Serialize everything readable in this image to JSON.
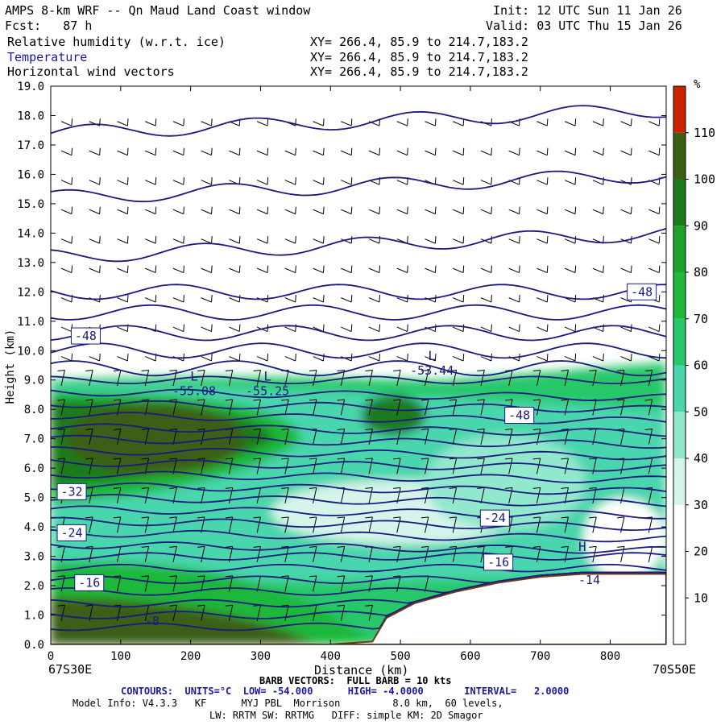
{
  "header": {
    "title": "AMPS 8-km WRF -- Qn Maud Land Coast window",
    "init": "Init: 12 UTC Sun 11 Jan 26",
    "fcst": "Fcst:   87 h",
    "valid": "Valid: 03 UTC Thu 15 Jan 26",
    "fields": [
      {
        "name": "Relative humidity (w.r.t. ice)",
        "xy": "XY= 266.4, 85.9 to 214.7,183.2"
      },
      {
        "name": "Temperature",
        "xy": "XY= 266.4, 85.9 to 214.7,183.2"
      },
      {
        "name": "Horizontal wind vectors",
        "xy": "XY= 266.4, 85.9 to 214.7,183.2"
      }
    ]
  },
  "footer": {
    "left_coord": "67S30E",
    "right_coord": "70S50E",
    "barb_line": "BARB VECTORS:  FULL BARB = 10 kts",
    "contours_line": "CONTOURS:  UNITS=°C  LOW= -54.000      HIGH= -4.0000       INTERVAL=   2.0000",
    "model_info": "Model Info: V4.3.3   KF      MYJ PBL  Morrison         8.0 km,  60 levels,",
    "model_info2": "LW: RRTM SW: RRTMG   DIFF: simple KM: 2D Smagor"
  },
  "colors": {
    "contour": "#1a1a80",
    "terrain": "#6e3a1e",
    "scale": [
      "#ffffff",
      "#ffffff",
      "#ffffff",
      "#d6f5ea",
      "#92e8cc",
      "#49d6ac",
      "#26c86a",
      "#1fb83a",
      "#20a22a",
      "#1e7a1e",
      "#3b5e14",
      "#cc2200"
    ]
  },
  "chart_data": {
    "type": "cross-section",
    "title": "Relative humidity (w.r.t. ice), Temperature, Horizontal wind vectors",
    "xlabel": "Distance (km)",
    "ylabel": "Height (km)",
    "xlim": [
      0,
      880
    ],
    "ylim": [
      0,
      19
    ],
    "xticks": [
      0,
      100,
      200,
      300,
      400,
      500,
      600,
      700,
      800
    ],
    "yticks": [
      "0.0",
      "1.0",
      "2.0",
      "3.0",
      "4.0",
      "5.0",
      "6.0",
      "7.0",
      "8.0",
      "9.0",
      "10.0",
      "11.0",
      "12.0",
      "13.0",
      "14.0",
      "15.0",
      "16.0",
      "17.0",
      "18.0",
      "19.0"
    ],
    "colorbar": {
      "unit": "%",
      "levels": [
        10,
        20,
        30,
        40,
        50,
        60,
        70,
        80,
        90,
        100,
        110
      ]
    },
    "contour_labels": [
      {
        "text": "-48",
        "x": 50,
        "y": 10.5,
        "boxed": true
      },
      {
        "text": "-48",
        "x": 845,
        "y": 12.0,
        "boxed": true
      },
      {
        "text": "-48",
        "x": 670,
        "y": 7.8,
        "boxed": true
      },
      {
        "text": "-32",
        "x": 30,
        "y": 5.2,
        "boxed": true
      },
      {
        "text": "-24",
        "x": 30,
        "y": 3.8,
        "boxed": true
      },
      {
        "text": "-24",
        "x": 635,
        "y": 4.3,
        "boxed": true
      },
      {
        "text": "-16",
        "x": 55,
        "y": 2.1,
        "boxed": true
      },
      {
        "text": "-16",
        "x": 640,
        "y": 2.8,
        "boxed": true
      },
      {
        "text": "-8",
        "x": 145,
        "y": 0.8,
        "boxed": false
      },
      {
        "text": "-14",
        "x": 770,
        "y": 2.2,
        "boxed": false
      }
    ],
    "extrema": [
      {
        "kind": "L",
        "value": "-55.08",
        "x": 205,
        "y": 8.6
      },
      {
        "kind": "L",
        "value": "-55.25",
        "x": 310,
        "y": 8.6
      },
      {
        "kind": "L",
        "value": "-53.44",
        "x": 545,
        "y": 9.3
      },
      {
        "kind": "H",
        "value": "",
        "x": 760,
        "y": 2.8
      }
    ],
    "terrain_height_km": {
      "x": [
        0,
        100,
        200,
        300,
        400,
        460,
        480,
        520,
        580,
        640,
        700,
        760,
        820,
        880
      ],
      "z": [
        0,
        0,
        0,
        0,
        0,
        0.1,
        0.9,
        1.4,
        1.8,
        2.1,
        2.3,
        2.4,
        2.4,
        2.4
      ]
    },
    "isotherms_km": [
      17.4,
      15.2,
      13.2,
      12.0,
      11.3,
      10.6,
      10.0,
      9.4,
      9.0,
      8.6,
      8.2,
      7.8,
      7.4,
      7.0,
      6.6,
      6.2,
      5.8,
      5.4,
      5.0,
      4.6,
      4.2,
      3.8,
      3.4,
      3.0,
      2.6,
      2.2,
      1.8,
      1.4,
      1.0,
      0.6
    ]
  }
}
